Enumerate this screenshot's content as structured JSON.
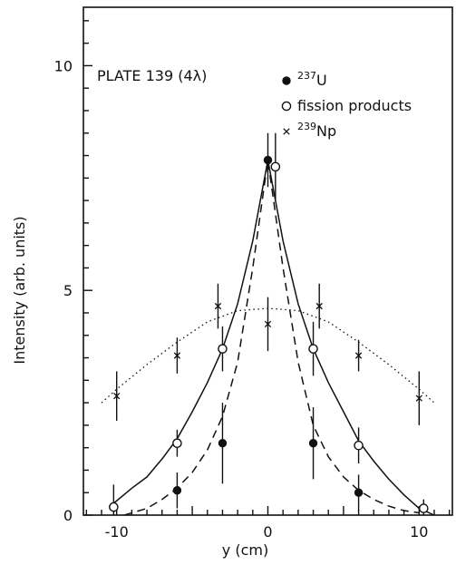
{
  "chart_data": {
    "type": "scatter",
    "annotation": "PLATE 139 (4λ)",
    "xlabel": "y (cm)",
    "ylabel": "Intensity (arb. units)",
    "xlim": [
      -12.2,
      12.2
    ],
    "ylim": [
      0,
      11.3
    ],
    "xticks": [
      -10,
      0,
      10
    ],
    "xtick_labels": [
      "-10",
      "0",
      "10"
    ],
    "yticks": [
      0,
      5,
      10
    ],
    "ytick_labels": [
      "0",
      "5",
      "10"
    ],
    "grid": false,
    "legend_position": "top-right",
    "legend": [
      {
        "mass": "237",
        "element": "U",
        "marker": "filled-circle",
        "line": "dashed"
      },
      {
        "label": "fission products",
        "marker": "open-circle",
        "line": "solid"
      },
      {
        "mass": "239",
        "element": "Np",
        "marker": "cross",
        "line": "dotted"
      }
    ],
    "series": [
      {
        "name": "237U",
        "marker": "filled-circle",
        "line": "dashed",
        "points": [
          {
            "x": -6,
            "y": 0.55,
            "err": 0.4
          },
          {
            "x": -3,
            "y": 1.6,
            "err": 0.9
          },
          {
            "x": 0,
            "y": 7.9,
            "err": 0.6
          },
          {
            "x": 3,
            "y": 1.6,
            "err": 0.8
          },
          {
            "x": 6,
            "y": 0.5,
            "err": 0.4
          }
        ],
        "curve": [
          [
            -9.5,
            0.0
          ],
          [
            -8,
            0.15
          ],
          [
            -7,
            0.35
          ],
          [
            -6,
            0.6
          ],
          [
            -5,
            0.95
          ],
          [
            -4,
            1.45
          ],
          [
            -3,
            2.2
          ],
          [
            -2,
            3.4
          ],
          [
            -1,
            5.5
          ],
          [
            0,
            7.9
          ],
          [
            1,
            5.5
          ],
          [
            2,
            3.4
          ],
          [
            3,
            2.0
          ],
          [
            4,
            1.3
          ],
          [
            5,
            0.85
          ],
          [
            6,
            0.55
          ],
          [
            7,
            0.35
          ],
          [
            8,
            0.2
          ],
          [
            9,
            0.1
          ],
          [
            10,
            0.05
          ]
        ]
      },
      {
        "name": "fission products",
        "marker": "open-circle",
        "line": "solid",
        "points": [
          {
            "x": -10.2,
            "y": 0.18,
            "err": 0.5
          },
          {
            "x": -6,
            "y": 1.6,
            "err": 0.3
          },
          {
            "x": -3,
            "y": 3.7,
            "err": 0.5
          },
          {
            "x": 0.5,
            "y": 7.75,
            "err": 0.75
          },
          {
            "x": 3,
            "y": 3.7,
            "err": 0.6
          },
          {
            "x": 6,
            "y": 1.55,
            "err": 0.4
          },
          {
            "x": 10.3,
            "y": 0.15,
            "err": 0.2
          }
        ],
        "curve": [
          [
            -10.5,
            0.18
          ],
          [
            -9,
            0.6
          ],
          [
            -8,
            0.85
          ],
          [
            -7,
            1.25
          ],
          [
            -6,
            1.7
          ],
          [
            -5,
            2.3
          ],
          [
            -4,
            2.95
          ],
          [
            -3,
            3.7
          ],
          [
            -2,
            4.7
          ],
          [
            -1,
            6.1
          ],
          [
            0,
            7.9
          ],
          [
            1,
            6.1
          ],
          [
            2,
            4.7
          ],
          [
            3,
            3.7
          ],
          [
            4,
            2.95
          ],
          [
            5,
            2.3
          ],
          [
            6,
            1.65
          ],
          [
            7,
            1.2
          ],
          [
            8,
            0.8
          ],
          [
            9,
            0.45
          ],
          [
            10,
            0.15
          ],
          [
            11,
            0.0
          ]
        ]
      },
      {
        "name": "239Np",
        "marker": "cross",
        "line": "dotted",
        "points": [
          {
            "x": -10,
            "y": 2.65,
            "err": 0.55
          },
          {
            "x": -6,
            "y": 3.55,
            "err": 0.4
          },
          {
            "x": -3.3,
            "y": 4.65,
            "err": 0.5
          },
          {
            "x": 0,
            "y": 4.25,
            "err": 0.6
          },
          {
            "x": 3.4,
            "y": 4.65,
            "err": 0.5
          },
          {
            "x": 6,
            "y": 3.55,
            "err": 0.35
          },
          {
            "x": 10,
            "y": 2.6,
            "err": 0.6
          }
        ],
        "curve": [
          [
            -11,
            2.5
          ],
          [
            -10,
            2.8
          ],
          [
            -8,
            3.35
          ],
          [
            -6,
            3.85
          ],
          [
            -4,
            4.3
          ],
          [
            -2,
            4.55
          ],
          [
            0,
            4.6
          ],
          [
            2,
            4.55
          ],
          [
            4,
            4.3
          ],
          [
            6,
            3.85
          ],
          [
            8,
            3.35
          ],
          [
            10,
            2.8
          ],
          [
            11,
            2.5
          ]
        ]
      }
    ]
  }
}
